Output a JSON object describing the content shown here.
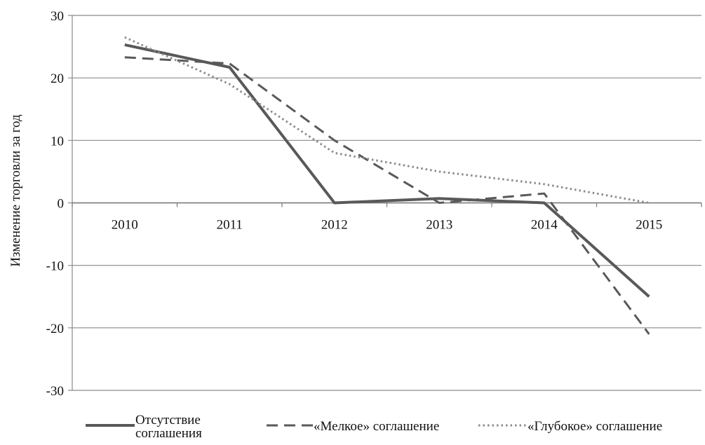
{
  "chart_data": {
    "type": "line",
    "title": "",
    "xlabel": "",
    "ylabel": "Изменение торговли за год",
    "categories": [
      "2010",
      "2011",
      "2012",
      "2013",
      "2014",
      "2015"
    ],
    "ylim": [
      -30,
      30
    ],
    "yticks": [
      30,
      20,
      10,
      0,
      -10,
      -20,
      -30
    ],
    "ytick_labels": [
      "30",
      "20",
      "10",
      "0",
      "-10",
      "-20",
      "-30"
    ],
    "grid": true,
    "legend_position": "bottom",
    "series": [
      {
        "name": "Отсутствие соглашения",
        "name_lines": [
          "Отсутствие",
          "соглашения"
        ],
        "values": [
          25.3,
          21.7,
          0,
          0.7,
          0,
          -15
        ],
        "style": "solid",
        "color": "#595959"
      },
      {
        "name": "«Мелкое» соглашение",
        "name_lines": [
          "«Мелкое» соглашение"
        ],
        "values": [
          23.3,
          22.3,
          10,
          0,
          1.5,
          -21
        ],
        "style": "dashed",
        "color": "#595959"
      },
      {
        "name": "«Глубокое» соглашение",
        "name_lines": [
          "«Глубокое» соглашение"
        ],
        "values": [
          26.5,
          19,
          8,
          5,
          3,
          0
        ],
        "style": "dotted",
        "color": "#8c8c8c"
      }
    ]
  }
}
